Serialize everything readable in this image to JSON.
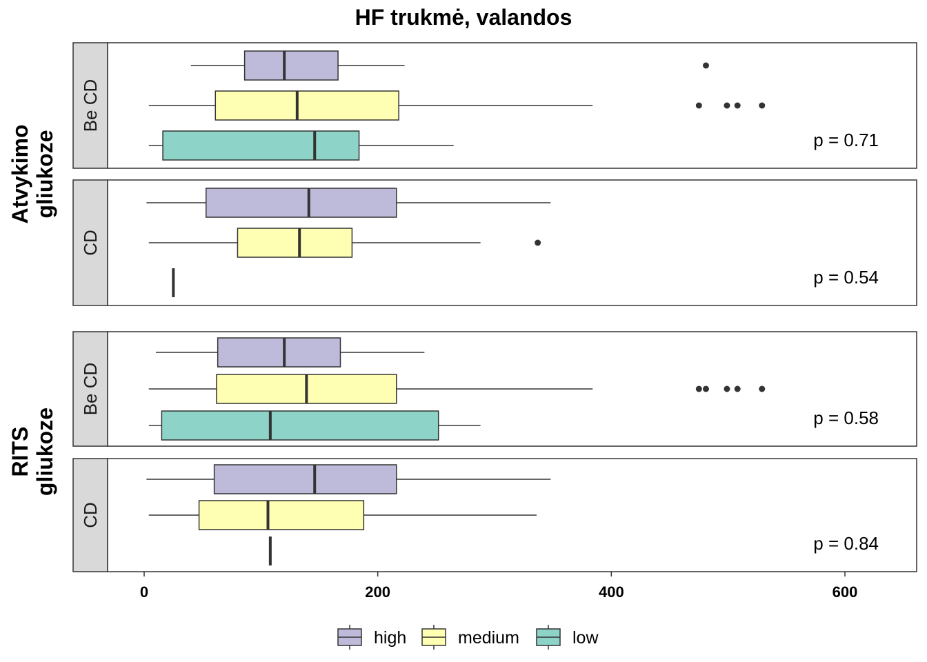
{
  "chart_data": {
    "type": "boxplot",
    "orientation": "horizontal",
    "title": "HF trukmė, valandos",
    "xlabel": "",
    "ylabel": "",
    "xlim": [
      -60,
      660
    ],
    "x_ticks": [
      0,
      200,
      400,
      600
    ],
    "grid": false,
    "legend": {
      "position": "bottom",
      "entries": [
        {
          "name": "high",
          "color": "#BEBADA"
        },
        {
          "name": "medium",
          "color": "#FFFFB3"
        },
        {
          "name": "low",
          "color": "#8DD3C7"
        }
      ]
    },
    "groups": [
      {
        "label": "Atvykimo\ngliukoze",
        "panels": [
          {
            "strip": "Be CD",
            "p_label": "p = 0.71",
            "boxes": [
              {
                "series": "high",
                "whisker_low": 40,
                "q1": 86,
                "median": 120,
                "q3": 166,
                "whisker_high": 223,
                "outliers": [
                  481
                ]
              },
              {
                "series": "medium",
                "whisker_low": 4,
                "q1": 61,
                "median": 131,
                "q3": 218,
                "whisker_high": 384,
                "outliers": [
                  475,
                  499,
                  508,
                  529
                ]
              },
              {
                "series": "low",
                "whisker_low": 4,
                "q1": 16,
                "median": 146,
                "q3": 184,
                "whisker_high": 265,
                "outliers": []
              }
            ]
          },
          {
            "strip": "CD",
            "p_label": "p = 0.54",
            "boxes": [
              {
                "series": "high",
                "whisker_low": 2,
                "q1": 53,
                "median": 141,
                "q3": 216,
                "whisker_high": 348,
                "outliers": []
              },
              {
                "series": "medium",
                "whisker_low": 4,
                "q1": 80,
                "median": 133,
                "q3": 178,
                "whisker_high": 288,
                "outliers": [
                  337
                ]
              },
              {
                "series": "low",
                "whisker_low": 25,
                "q1": 25,
                "median": 25,
                "q3": 25,
                "whisker_high": 25,
                "outliers": []
              }
            ]
          }
        ]
      },
      {
        "label": "RITS\ngliukoze",
        "panels": [
          {
            "strip": "Be CD",
            "p_label": "p = 0.58",
            "boxes": [
              {
                "series": "high",
                "whisker_low": 10,
                "q1": 63,
                "median": 120,
                "q3": 168,
                "whisker_high": 240,
                "outliers": []
              },
              {
                "series": "medium",
                "whisker_low": 4,
                "q1": 62,
                "median": 139,
                "q3": 216,
                "whisker_high": 384,
                "outliers": [
                  475,
                  481,
                  499,
                  508,
                  529
                ]
              },
              {
                "series": "low",
                "whisker_low": 4,
                "q1": 15,
                "median": 108,
                "q3": 252,
                "whisker_high": 288,
                "outliers": []
              }
            ]
          },
          {
            "strip": "CD",
            "p_label": "p = 0.84",
            "boxes": [
              {
                "series": "high",
                "whisker_low": 2,
                "q1": 60,
                "median": 146,
                "q3": 216,
                "whisker_high": 348,
                "outliers": []
              },
              {
                "series": "medium",
                "whisker_low": 4,
                "q1": 47,
                "median": 106,
                "q3": 188,
                "whisker_high": 336,
                "outliers": []
              },
              {
                "series": "low",
                "whisker_low": 108,
                "q1": 108,
                "median": 108,
                "q3": 108,
                "whisker_high": 108,
                "outliers": []
              }
            ]
          }
        ]
      }
    ]
  }
}
